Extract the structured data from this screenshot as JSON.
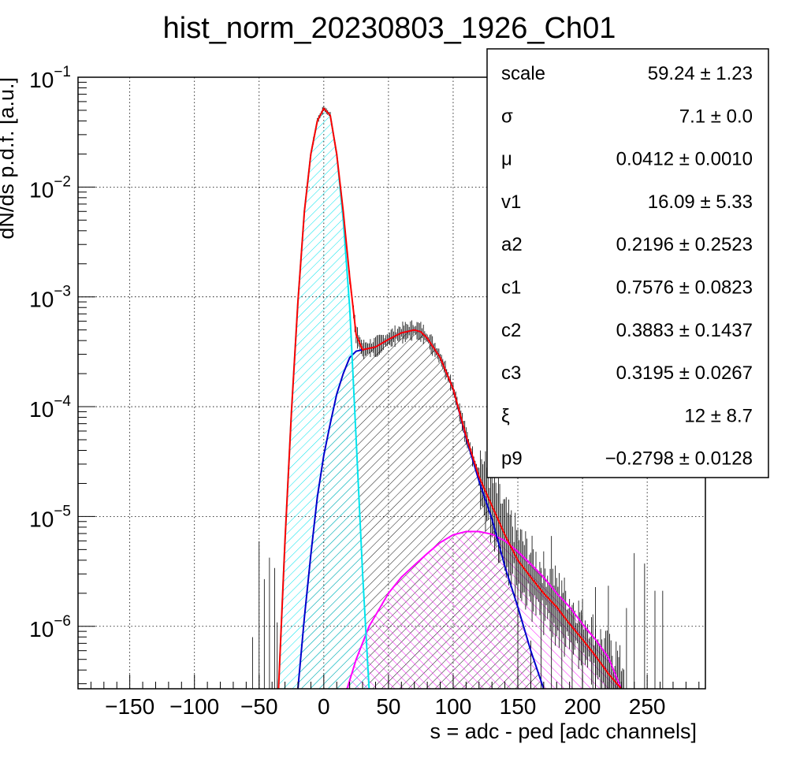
{
  "chart_data": {
    "type": "line",
    "title": "hist_norm_20230803_1926_Ch01",
    "xlabel": "s = adc - ped [adc channels]",
    "ylabel": "dN/ds p.d.f. [a.u.]",
    "xlim": [
      -190,
      295
    ],
    "ylim": [
      2.7e-07,
      0.1
    ],
    "yscale": "log",
    "grid": true,
    "x_ticks": [
      -150,
      -100,
      -50,
      0,
      50,
      100,
      150,
      200,
      250
    ],
    "x_tick_labels": [
      "−150",
      "−100",
      "−50",
      "0",
      "50",
      "100",
      "150",
      "200",
      "250"
    ],
    "y_ticks": [
      {
        "value": 1e-06,
        "base": "10",
        "exp": "−6"
      },
      {
        "value": 1e-05,
        "base": "10",
        "exp": "−5"
      },
      {
        "value": 0.0001,
        "base": "10",
        "exp": "−4"
      },
      {
        "value": 0.001,
        "base": "10",
        "exp": "−3"
      },
      {
        "value": 0.01,
        "base": "10",
        "exp": "−2"
      },
      {
        "value": 0.1,
        "base": "10",
        "exp": "−1"
      }
    ],
    "series": [
      {
        "color": "#ff0000",
        "style": "fit-total",
        "x": [
          -35,
          -30,
          -25,
          -20,
          -15,
          -10,
          -5,
          0,
          5,
          10,
          15,
          20,
          25,
          30,
          40,
          50,
          60,
          70,
          75,
          80,
          90,
          100,
          110,
          120,
          130,
          140,
          150,
          160,
          170,
          180,
          190,
          200,
          210,
          220,
          230
        ],
        "y": [
          2.7e-07,
          6e-06,
          9e-05,
          0.0009,
          0.006,
          0.02,
          0.04,
          0.052,
          0.045,
          0.02,
          0.006,
          0.0015,
          0.00045,
          0.00033,
          0.00035,
          0.00041,
          0.00047,
          0.0005,
          0.00048,
          0.00042,
          0.00028,
          0.000145,
          5.4e-05,
          2.3e-05,
          1.25e-05,
          6.8e-06,
          4e-06,
          2.8e-06,
          2e-06,
          1.5e-06,
          1.05e-06,
          7.6e-07,
          5.4e-07,
          3.7e-07,
          2.7e-07
        ]
      },
      {
        "color": "#00e5ee",
        "style": "hatched-pedestal",
        "x": [
          -35,
          -30,
          -25,
          -20,
          -15,
          -10,
          -5,
          0,
          5,
          10,
          15,
          20,
          25,
          30,
          35
        ],
        "y": [
          2.7e-07,
          6e-06,
          9e-05,
          0.0009,
          0.006,
          0.02,
          0.04,
          0.052,
          0.045,
          0.02,
          0.005,
          0.0008,
          5e-05,
          3e-06,
          2.7e-07
        ]
      },
      {
        "color": "#0000cc",
        "style": "hatched-signal",
        "x": [
          -20,
          -15,
          -10,
          -5,
          0,
          5,
          10,
          15,
          20,
          25,
          30,
          40,
          50,
          60,
          70,
          75,
          80,
          90,
          100,
          110,
          120,
          130,
          140,
          150,
          160,
          170
        ],
        "y": [
          2.7e-07,
          1.2e-06,
          4.5e-06,
          1.5e-05,
          3.6e-05,
          7e-05,
          0.00013,
          0.0002,
          0.00028,
          0.00032,
          0.00033,
          0.00035,
          0.00041,
          0.00047,
          0.0005,
          0.00048,
          0.00042,
          0.00028,
          0.000145,
          5.2e-05,
          2.1e-05,
          9.5e-06,
          3.5e-06,
          1.5e-06,
          6e-07,
          2.7e-07
        ]
      },
      {
        "color": "#ff00ff",
        "style": "hatched-second",
        "x": [
          18,
          25,
          35,
          50,
          60,
          70,
          80,
          90,
          100,
          110,
          120,
          130,
          140,
          150,
          160,
          170,
          180,
          190,
          200,
          210,
          220,
          230
        ],
        "y": [
          2.7e-07,
          5e-07,
          1e-06,
          2e-06,
          2.8e-06,
          3.6e-06,
          4.6e-06,
          5.8e-06,
          6.8e-06,
          7.3e-06,
          7.3e-06,
          6.9e-06,
          6e-06,
          4.8e-06,
          3.7e-06,
          2.8e-06,
          2e-06,
          1.5e-06,
          1.05e-06,
          7.6e-07,
          5.2e-07,
          2.7e-07
        ]
      }
    ],
    "stats": [
      {
        "name": "scale",
        "value": "59.24 ± 1.23"
      },
      {
        "name": "σ",
        "value": "7.1 ± 0.0"
      },
      {
        "name": "μ",
        "value": "0.0412 ± 0.0010"
      },
      {
        "name": "v1",
        "value": "16.09 ± 5.33"
      },
      {
        "name": "a2",
        "value": "0.2196 ± 0.2523"
      },
      {
        "name": "c1",
        "value": "0.7576 ± 0.0823"
      },
      {
        "name": "c2",
        "value": "0.3883 ± 0.1437"
      },
      {
        "name": "c3",
        "value": "0.3195 ± 0.0267"
      },
      {
        "name": "ξ",
        "value": "12 ± 8.7"
      },
      {
        "name": "p9",
        "value": "−0.2798 ± 0.0128"
      }
    ]
  }
}
